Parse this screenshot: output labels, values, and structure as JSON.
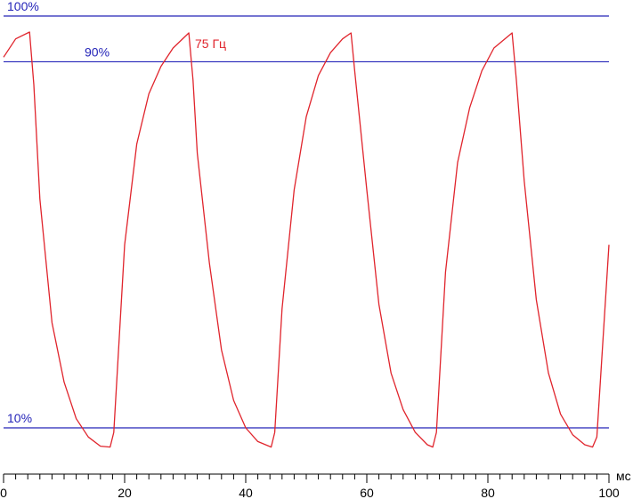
{
  "chart_data": {
    "type": "line",
    "x_unit": "мс",
    "xlim": [
      0,
      100
    ],
    "x_ticks": [
      0,
      20,
      40,
      60,
      80,
      100
    ],
    "ylim": [
      0,
      100
    ],
    "reference_lines": [
      {
        "label": "100%",
        "value": 100
      },
      {
        "label": "90%",
        "value": 90
      },
      {
        "label": "10%",
        "value": 10
      }
    ],
    "series": [
      {
        "name": "75 Гц",
        "color": "#e0242c",
        "x": [
          0,
          2,
          4.3,
          5,
          6,
          8,
          10,
          12,
          14,
          16,
          17.6,
          18.2,
          20,
          22,
          24,
          26,
          28,
          30.6,
          31.3,
          32,
          34,
          36,
          38,
          40,
          42,
          44.2,
          44.8,
          46,
          48,
          50,
          52,
          54,
          56,
          57.4,
          58,
          60,
          62,
          64,
          66,
          68,
          70,
          70.9,
          71.5,
          73,
          75,
          77,
          79,
          81,
          84,
          84.7,
          86,
          88,
          90,
          92,
          94,
          96,
          97.3,
          98,
          100
        ],
        "y": [
          91,
          95,
          96.5,
          85,
          60,
          33,
          20,
          12,
          8,
          6,
          5.8,
          9,
          50,
          72,
          83,
          89,
          93,
          96.3,
          86,
          70,
          46,
          27,
          16,
          10,
          7,
          5.8,
          9,
          36,
          62,
          78,
          87,
          92,
          95,
          96.3,
          88,
          62,
          37,
          22,
          14,
          9,
          6.3,
          5.8,
          9,
          44,
          68,
          80,
          88,
          93,
          96.3,
          86,
          64,
          38,
          22,
          13,
          8.5,
          6.3,
          5.8,
          8,
          50
        ]
      }
    ],
    "grid": false,
    "legend": "series label placed at the first peak"
  },
  "colors": {
    "reference": "#2424b8",
    "axis": "#000000",
    "series": "#e0242c"
  }
}
